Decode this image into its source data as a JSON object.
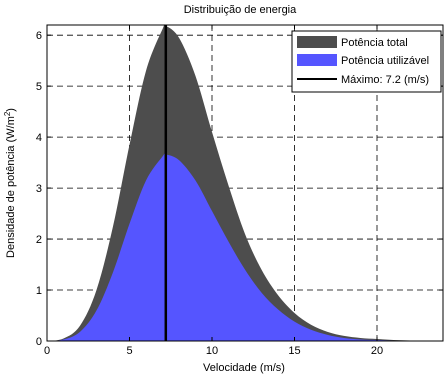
{
  "chart_data": {
    "type": "area",
    "title": "Distribuição de energia",
    "xlabel": "Velocidade (m/s)",
    "ylabel": "Densidade de potência (W/m²)",
    "ylabel_main": "Densidade de potência (W/m",
    "ylabel_sup": "2",
    "ylabel_close": ")",
    "xlim": [
      0,
      24
    ],
    "ylim": [
      0,
      6.2
    ],
    "xticks": [
      0,
      5,
      10,
      15,
      20
    ],
    "yticks": [
      0,
      1,
      2,
      3,
      4,
      5,
      6
    ],
    "grid": true,
    "legend_position": "top-right",
    "series": [
      {
        "name": "Potência total",
        "color": "#4d4d4d",
        "x": [
          0,
          1,
          2,
          3,
          4,
          5,
          6,
          7,
          7.2,
          8,
          9,
          10,
          11,
          12,
          13,
          14,
          15,
          16,
          17,
          18,
          19,
          20,
          21,
          22,
          23,
          24
        ],
        "values": [
          0,
          0.05,
          0.3,
          1.0,
          2.25,
          3.85,
          5.3,
          6.12,
          6.18,
          5.95,
          5.2,
          4.1,
          3.05,
          2.1,
          1.4,
          0.9,
          0.55,
          0.32,
          0.18,
          0.1,
          0.06,
          0.04,
          0.02,
          0.01,
          0.005,
          0.003
        ]
      },
      {
        "name": "Potência utilizável",
        "color": "#5555ff",
        "x": [
          0,
          1,
          2,
          3,
          4,
          5,
          6,
          7,
          7.2,
          8,
          9,
          10,
          11,
          12,
          13,
          14,
          15,
          16,
          17,
          18,
          19,
          20,
          21,
          22,
          23,
          24
        ],
        "values": [
          0,
          0.03,
          0.18,
          0.6,
          1.35,
          2.3,
          3.15,
          3.62,
          3.66,
          3.55,
          3.15,
          2.55,
          1.95,
          1.4,
          0.95,
          0.62,
          0.38,
          0.22,
          0.12,
          0.06,
          0.03,
          0.02,
          0.01,
          0.005,
          0.002,
          0.001
        ]
      }
    ],
    "marker": {
      "name": "Máximo: 7.2 (m/s)",
      "x": 7.2,
      "color": "#000000"
    }
  }
}
